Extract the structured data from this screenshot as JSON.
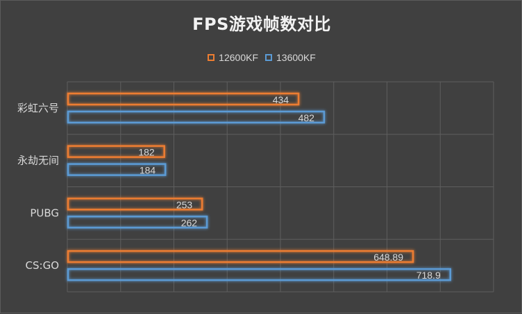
{
  "chart_data": {
    "type": "bar",
    "orientation": "horizontal",
    "title": "FPS游戏帧数对比",
    "categories": [
      "彩虹六号",
      "永劫无间",
      "PUBG",
      "CS:GO"
    ],
    "series": [
      {
        "name": "12600KF",
        "color": "#ed7d31",
        "values": [
          434,
          182,
          253,
          648.89
        ],
        "labels": [
          "434",
          "182",
          "253",
          "648.89"
        ]
      },
      {
        "name": "13600KF",
        "color": "#5b9bd5",
        "values": [
          482,
          184,
          262,
          718.9
        ],
        "labels": [
          "482",
          "184",
          "262",
          "718.9"
        ]
      }
    ],
    "xlim": [
      0,
      800
    ],
    "grid": true,
    "legend_position": "top"
  }
}
